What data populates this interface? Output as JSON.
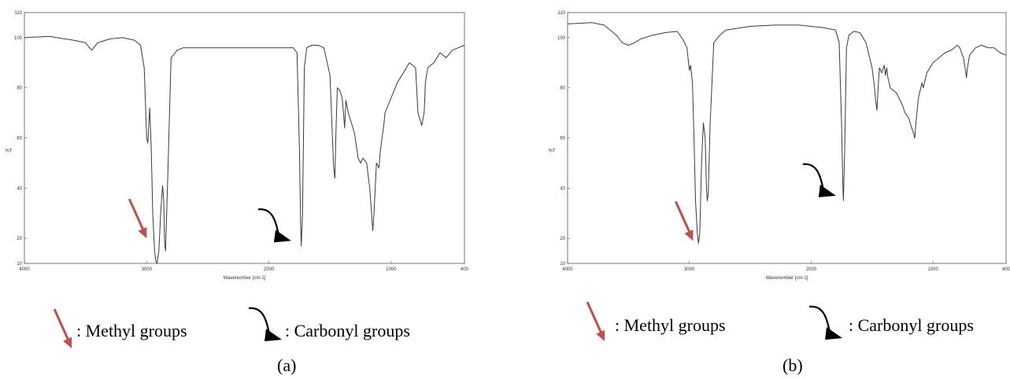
{
  "legend": {
    "methyl": ": Methyl groups",
    "carbonyl": ": Carbonyl groups",
    "methyl_color": "#c0504d",
    "carbonyl_color": "#000000"
  },
  "chart_data": [
    {
      "type": "line",
      "caption": "(a)",
      "xlabel": "Wavenumber [cm-1]",
      "ylabel": "%T",
      "xlim": [
        4000,
        400
      ],
      "ylim": [
        10,
        110
      ],
      "x_ticks": [
        "4000",
        "3000",
        "2000",
        "1000",
        "400"
      ],
      "y_ticks": [
        "10",
        "20",
        "40",
        "60",
        "80",
        "100",
        "110"
      ],
      "grid": false,
      "series": [
        {
          "x": [
            4000,
            3800,
            3600,
            3500,
            3450,
            3400,
            3300,
            3200,
            3100,
            3050,
            3020,
            3000,
            2990,
            2975,
            2962,
            2950,
            2935,
            2925,
            2915,
            2900,
            2885,
            2870,
            2860,
            2853,
            2845,
            2830,
            2800,
            2750,
            2700,
            2500,
            2300,
            2100,
            2000,
            1900,
            1800,
            1770,
            1750,
            1740,
            1735,
            1725,
            1710,
            1690,
            1650,
            1600,
            1550,
            1500,
            1480,
            1470,
            1460,
            1450,
            1440,
            1420,
            1400,
            1390,
            1380,
            1370,
            1350,
            1300,
            1270,
            1250,
            1230,
            1200,
            1175,
            1160,
            1150,
            1140,
            1120,
            1100,
            1090,
            1080,
            1060,
            1050,
            1000,
            950,
            900,
            850,
            800,
            780,
            750,
            730,
            725,
            720,
            700,
            650,
            600,
            550,
            500,
            450,
            400
          ],
          "y": [
            100,
            100.5,
            99,
            98,
            95,
            98,
            99.5,
            100,
            99,
            97,
            88,
            60,
            58,
            72,
            55,
            30,
            15,
            11,
            10,
            15,
            30,
            41,
            35,
            18,
            15,
            40,
            92,
            95,
            96,
            96,
            96,
            96,
            96,
            96,
            96,
            94,
            55,
            25,
            17,
            30,
            88,
            96,
            97,
            97,
            96,
            85,
            60,
            48,
            44,
            65,
            80,
            79,
            76,
            70,
            64,
            75,
            70,
            62,
            52,
            50,
            52,
            50,
            40,
            30,
            23,
            30,
            50,
            48,
            54,
            58,
            65,
            70,
            76,
            82,
            86,
            90,
            88,
            70,
            65,
            70,
            75,
            82,
            88,
            90,
            94,
            92,
            95,
            96,
            97
          ]
        }
      ],
      "annotations": [
        {
          "kind": "methyl-arrow",
          "x": 3000,
          "y": 20
        },
        {
          "kind": "carbonyl-arrow",
          "x": 1830,
          "y": 19
        }
      ]
    },
    {
      "type": "line",
      "caption": "(b)",
      "xlabel": "Wavenumber [cm-1]",
      "ylabel": "%T",
      "xlim": [
        4000,
        400
      ],
      "ylim": [
        10,
        110
      ],
      "x_ticks": [
        "4000",
        "3000",
        "2000",
        "1000",
        "400"
      ],
      "y_ticks": [
        "10",
        "20",
        "40",
        "60",
        "80",
        "100",
        "110"
      ],
      "grid": false,
      "series": [
        {
          "x": [
            4000,
            3800,
            3700,
            3600,
            3550,
            3500,
            3450,
            3400,
            3300,
            3200,
            3100,
            3050,
            3020,
            3000,
            2990,
            2975,
            2962,
            2950,
            2935,
            2925,
            2915,
            2900,
            2885,
            2870,
            2860,
            2853,
            2845,
            2830,
            2800,
            2750,
            2700,
            2500,
            2300,
            2100,
            2000,
            1900,
            1800,
            1770,
            1750,
            1740,
            1735,
            1725,
            1710,
            1690,
            1650,
            1600,
            1550,
            1500,
            1480,
            1470,
            1460,
            1450,
            1440,
            1420,
            1400,
            1390,
            1380,
            1370,
            1350,
            1300,
            1270,
            1250,
            1230,
            1200,
            1175,
            1160,
            1150,
            1140,
            1120,
            1100,
            1090,
            1080,
            1060,
            1050,
            1000,
            950,
            900,
            850,
            800,
            780,
            750,
            730,
            725,
            720,
            700,
            650,
            600,
            550,
            500,
            450,
            400
          ],
          "y": [
            105.5,
            106,
            105,
            101,
            98,
            97,
            98,
            99.5,
            101,
            102,
            102.5,
            99,
            96,
            87,
            89,
            82,
            60,
            35,
            22,
            18,
            22,
            50,
            66,
            60,
            40,
            35,
            38,
            65,
            98,
            101,
            103,
            104.5,
            105,
            105,
            104.5,
            104,
            103,
            98,
            65,
            40,
            35,
            55,
            96,
            101,
            102.5,
            102,
            98,
            88,
            80,
            75,
            71,
            80,
            88,
            86,
            89,
            85,
            88,
            84,
            80,
            78,
            75,
            73,
            70,
            68,
            64,
            62,
            60,
            66,
            76,
            80,
            82,
            80,
            84,
            86,
            90,
            92,
            94,
            95,
            97,
            96,
            92,
            86,
            84,
            87,
            93,
            96,
            97,
            96,
            96,
            94,
            93
          ]
        }
      ],
      "annotations": [
        {
          "kind": "methyl-arrow",
          "x": 2970,
          "y": 19
        },
        {
          "kind": "carbonyl-arrow",
          "x": 1810,
          "y": 37
        }
      ]
    }
  ]
}
